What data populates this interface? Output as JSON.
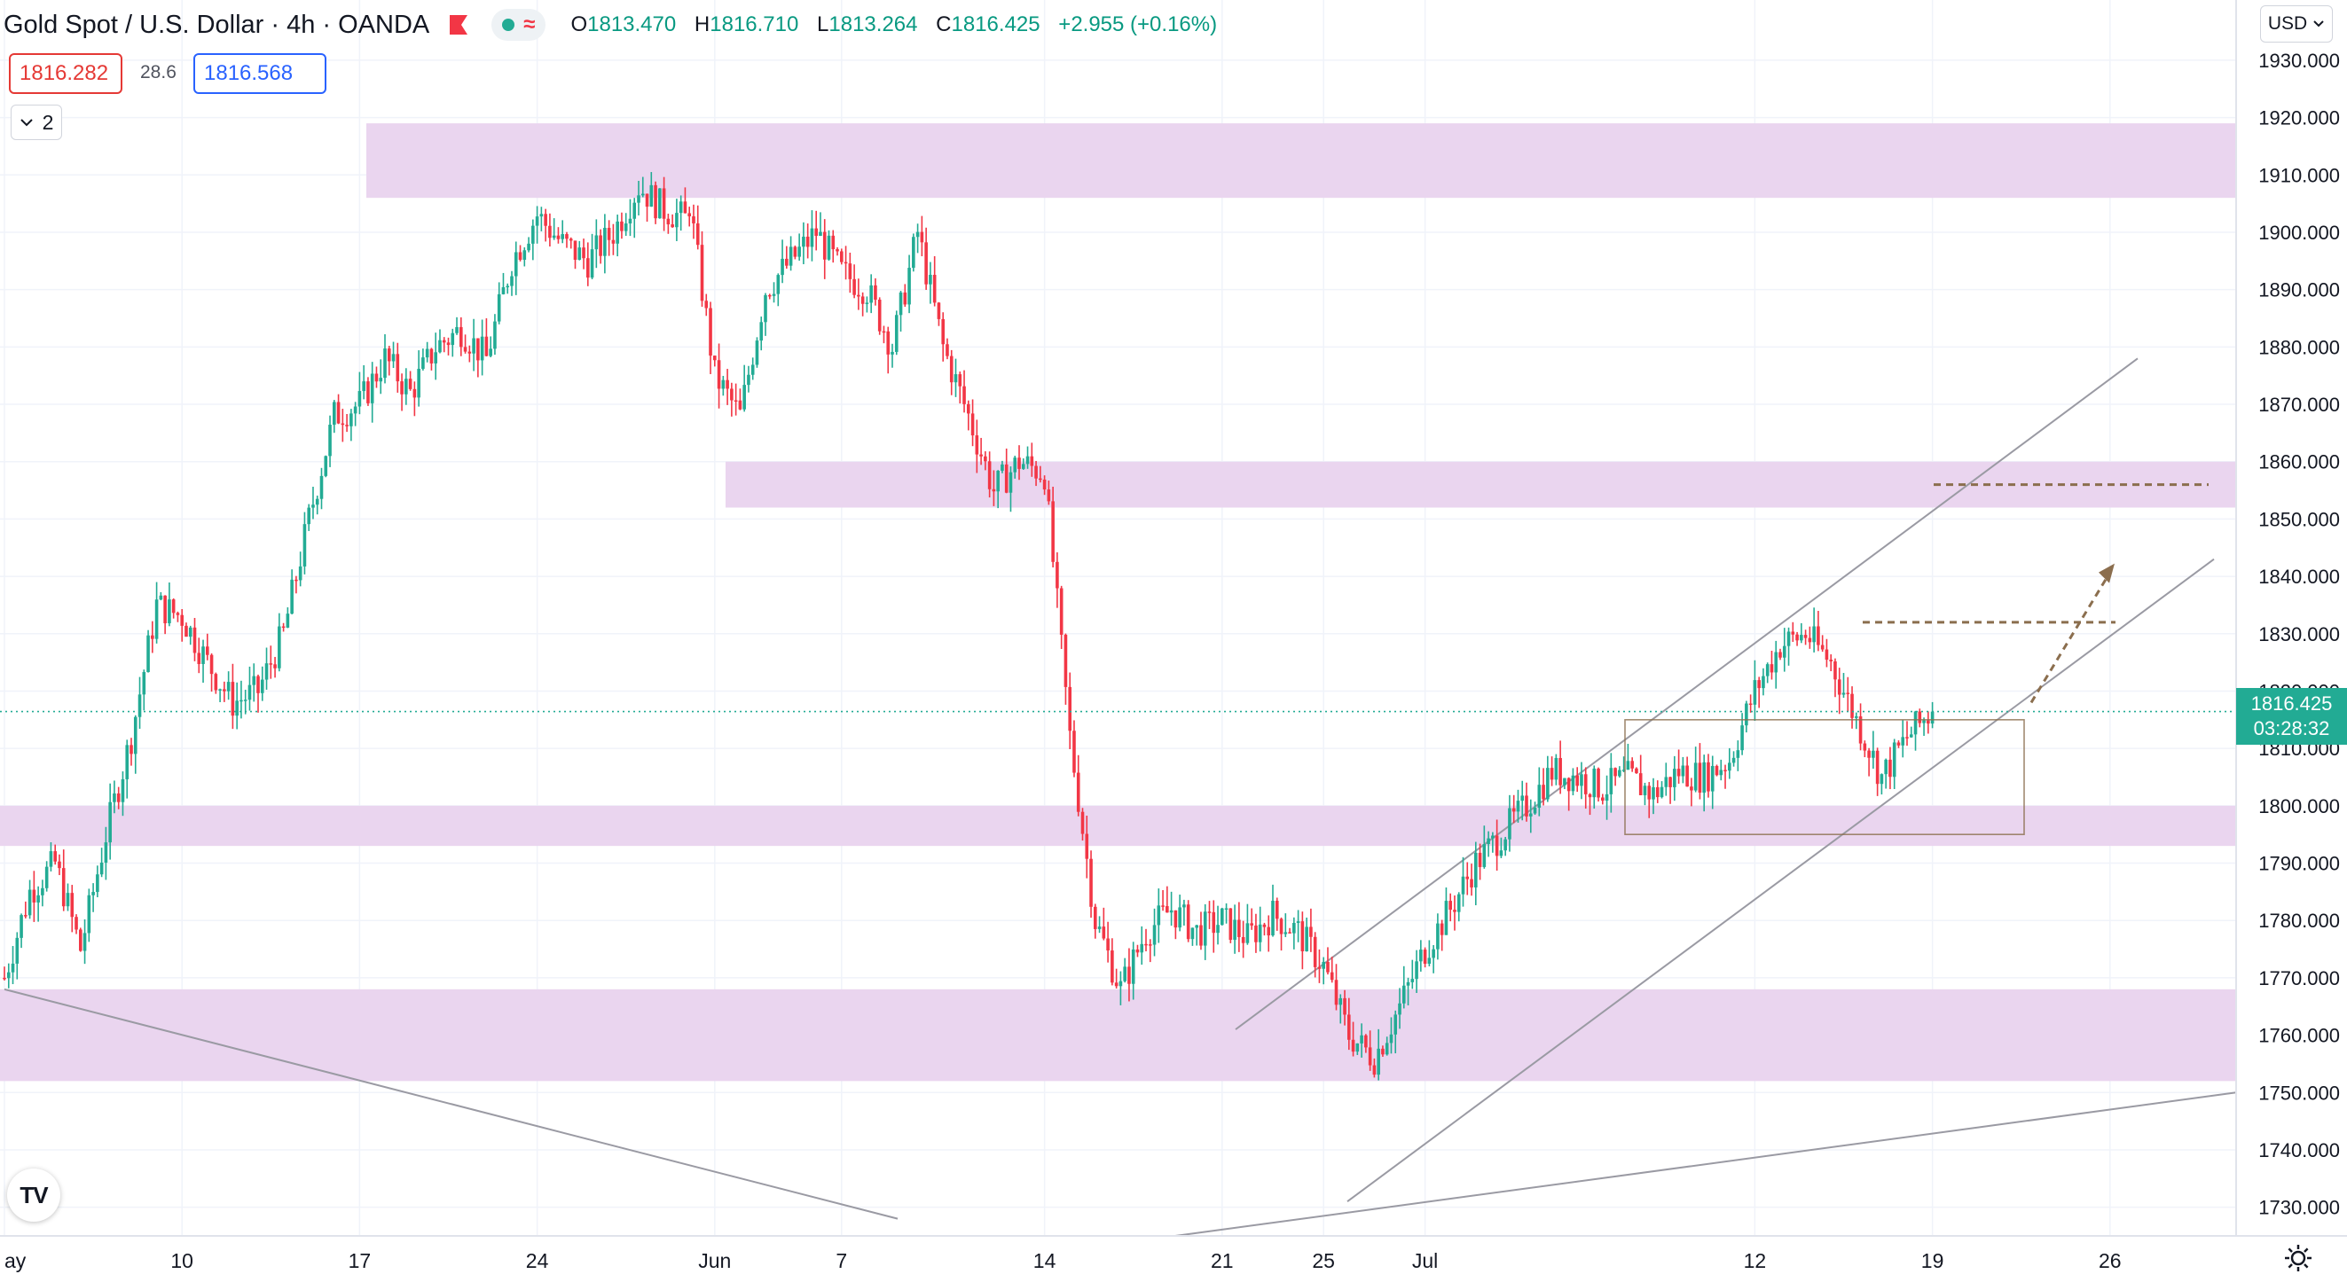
{
  "header": {
    "symbol": "Gold Spot / U.S. Dollar",
    "interval": "4h",
    "broker": "OANDA",
    "title": "Gold Spot / U.S. Dollar · 4h · OANDA",
    "ohlc": {
      "open_label": "O",
      "open": "1813.470",
      "high_label": "H",
      "high": "1816.710",
      "low_label": "L",
      "low": "1813.264",
      "close_label": "C",
      "close": "1816.425",
      "change": "+2.955 (+0.16%)"
    }
  },
  "trade": {
    "sell_price": "1816.282",
    "spread": "28.6",
    "buy_price": "1816.568"
  },
  "indicators": {
    "collapse_count": "2"
  },
  "currency": "USD",
  "current_price": {
    "value": "1816.425",
    "countdown": "03:28:32",
    "color": "#22ab94"
  },
  "colors": {
    "up": "#22ab94",
    "down": "#f23645",
    "zone": "#e9d3ee",
    "annotation": "#8b6e4e",
    "trendline": "#9a9aa3"
  },
  "icons": {
    "flag": "red-flag-icon",
    "logo": "tradingview-logo-icon",
    "settings": "gear-icon",
    "chevron": "chevron-down-icon"
  },
  "chart_data": {
    "type": "candlestick",
    "title": "Gold Spot / U.S. Dollar · 4h · OANDA",
    "ylim": [
      1725,
      1932
    ],
    "y_ticks": [
      "1730.000",
      "1740.000",
      "1750.000",
      "1760.000",
      "1770.000",
      "1780.000",
      "1790.000",
      "1800.000",
      "1810.000",
      "1820.000",
      "1830.000",
      "1840.000",
      "1850.000",
      "1860.000",
      "1870.000",
      "1880.000",
      "1890.000",
      "1900.000",
      "1910.000",
      "1920.000",
      "1930.000"
    ],
    "x_ticks": [
      "ay",
      "10",
      "17",
      "24",
      "Jun",
      "7",
      "14",
      "21",
      "25",
      "Jul",
      "12",
      "19",
      "26"
    ],
    "grid": true,
    "close_path": [
      [
        "May 4",
        1770
      ],
      [
        "May 5",
        1785
      ],
      [
        "May 6",
        1790
      ],
      [
        "May 7",
        1775
      ],
      [
        "May 8",
        1795
      ],
      [
        "May 9",
        1812
      ],
      [
        "May 10",
        1835
      ],
      [
        "May 11",
        1833
      ],
      [
        "May 12",
        1825
      ],
      [
        "May 13",
        1818
      ],
      [
        "May 14",
        1820
      ],
      [
        "May 15",
        1830
      ],
      [
        "May 16",
        1850
      ],
      [
        "May 17",
        1868
      ],
      [
        "May 18",
        1870
      ],
      [
        "May 19",
        1878
      ],
      [
        "May 20",
        1872
      ],
      [
        "May 21",
        1880
      ],
      [
        "May 22",
        1883
      ],
      [
        "May 23",
        1878
      ],
      [
        "May 24",
        1895
      ],
      [
        "May 25",
        1903
      ],
      [
        "May 26",
        1898
      ],
      [
        "May 27",
        1895
      ],
      [
        "May 28",
        1900
      ],
      [
        "May 29",
        1908
      ],
      [
        "May 30",
        1904
      ],
      [
        "May 31",
        1902
      ],
      [
        "Jun 1",
        1910
      ],
      [
        "Jun 2",
        1905
      ],
      [
        "Jun 3",
        1875
      ],
      [
        "Jun 4",
        1868
      ],
      [
        "Jun 5",
        1890
      ],
      [
        "Jun 6",
        1895
      ],
      [
        "Jun 7",
        1900
      ],
      [
        "Jun 8",
        1893
      ],
      [
        "Jun 9",
        1890
      ],
      [
        "Jun 10",
        1880
      ],
      [
        "Jun 11",
        1900
      ],
      [
        "Jun 12",
        1880
      ],
      [
        "Jun 13",
        1868
      ],
      [
        "Jun 14",
        1855
      ],
      [
        "Jun 15",
        1860
      ],
      [
        "Jun 16",
        1858
      ],
      [
        "Jun 17",
        1812
      ],
      [
        "Jun 18",
        1780
      ],
      [
        "Jun 19",
        1768
      ],
      [
        "Jun 20",
        1778
      ],
      [
        "Jun 21",
        1782
      ],
      [
        "Jun 22",
        1778
      ],
      [
        "Jun 23",
        1780
      ],
      [
        "Jun 24",
        1777
      ],
      [
        "Jun 25",
        1781
      ],
      [
        "Jun 26",
        1778
      ],
      [
        "Jun 27",
        1772
      ],
      [
        "Jun 28",
        1760
      ],
      [
        "Jun 29",
        1756
      ],
      [
        "Jun 30",
        1765
      ],
      [
        "Jul 1",
        1775
      ],
      [
        "Jul 2",
        1782
      ],
      [
        "Jul 3",
        1790
      ],
      [
        "Jul 4",
        1795
      ],
      [
        "Jul 5",
        1800
      ],
      [
        "Jul 6",
        1806
      ],
      [
        "Jul 7",
        1805
      ],
      [
        "Jul 8",
        1803
      ],
      [
        "Jul 9",
        1805
      ],
      [
        "Jul 10",
        1802
      ],
      [
        "Jul 11",
        1806
      ],
      [
        "Jul 12",
        1805
      ],
      [
        "Jul 13",
        1808
      ],
      [
        "Jul 14",
        1820
      ],
      [
        "Jul 15",
        1828
      ],
      [
        "Jul 16",
        1830
      ],
      [
        "Jul 17",
        1825
      ],
      [
        "Jul 18",
        1815
      ],
      [
        "Jul 19",
        1805
      ],
      [
        "Jul 20",
        1812
      ],
      [
        "Jul 21",
        1816.425
      ]
    ],
    "zones": [
      [
        1906,
        1919
      ],
      [
        1852,
        1860
      ],
      [
        1793,
        1800
      ],
      [
        1752,
        1768
      ]
    ],
    "range_box": [
      1795,
      1815
    ],
    "levels": [
      1832,
      1856
    ]
  }
}
